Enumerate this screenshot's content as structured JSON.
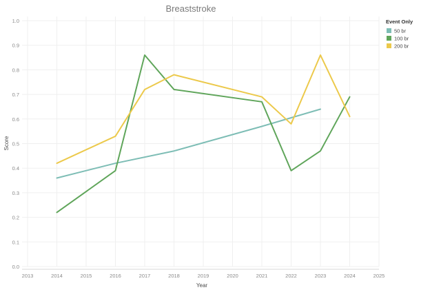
{
  "chart_data": {
    "type": "line",
    "title": "Breaststroke",
    "xlabel": "Year",
    "ylabel": "Score",
    "xlim": [
      2013,
      2025
    ],
    "ylim": [
      0,
      1
    ],
    "x_ticks": [
      "2013",
      "2014",
      "2015",
      "2016",
      "2017",
      "2018",
      "2019",
      "2020",
      "2021",
      "2022",
      "2023",
      "2024",
      "2025"
    ],
    "y_ticks": [
      "0.0",
      "0.1",
      "0.2",
      "0.3",
      "0.4",
      "0.5",
      "0.6",
      "0.7",
      "0.8",
      "0.9",
      "1.0"
    ],
    "grid": true,
    "legend": {
      "title": "Event Only",
      "position": "top-right"
    },
    "series": [
      {
        "name": "50 br",
        "color": "#7dbdb5",
        "x": [
          2014,
          2016,
          2018,
          2021,
          2023
        ],
        "y": [
          0.36,
          0.42,
          0.47,
          0.57,
          0.64
        ]
      },
      {
        "name": "100 br",
        "color": "#5fa55a",
        "x": [
          2014,
          2016,
          2017,
          2018,
          2021,
          2022,
          2023,
          2024
        ],
        "y": [
          0.22,
          0.39,
          0.86,
          0.72,
          0.67,
          0.39,
          0.47,
          0.69
        ]
      },
      {
        "name": "200 br",
        "color": "#ecc94b",
        "x": [
          2014,
          2016,
          2017,
          2018,
          2021,
          2022,
          2023,
          2024
        ],
        "y": [
          0.42,
          0.53,
          0.72,
          0.78,
          0.69,
          0.58,
          0.86,
          0.61
        ]
      }
    ]
  }
}
